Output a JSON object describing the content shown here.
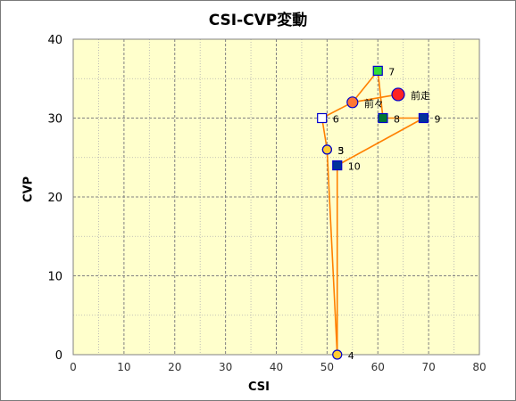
{
  "chart_data": {
    "type": "scatter",
    "title": "CSI-CVP変動",
    "xlabel": "CSI",
    "ylabel": "CVP",
    "xlim": [
      0,
      80
    ],
    "ylim": [
      0,
      40
    ],
    "xticks": [
      0,
      10,
      20,
      30,
      40,
      50,
      60,
      70,
      80
    ],
    "yticks": [
      0,
      10,
      20,
      30,
      40
    ],
    "grid": true,
    "colors": {
      "plot_bg": "#ffffcc",
      "grid": "#808080",
      "line": "#ff8000",
      "square_blue": "#003399",
      "square_green": "#33dd33",
      "square_darkgreen": "#007733",
      "circle_red": "#ff2222",
      "circle_orange": "#ff7733",
      "circle_yellow": "#ffcc33",
      "circle_green": "#88cc44",
      "marker_stroke": "#0000cc"
    },
    "path_order": [
      "前走",
      "前々",
      "6",
      "5",
      "4",
      "10",
      "9",
      "8",
      "7",
      "前々"
    ],
    "points": [
      {
        "label": "前走",
        "x": 64,
        "y": 33,
        "marker": "circle",
        "fill": "#ff2222",
        "size": 7
      },
      {
        "label": "前々",
        "x": 55,
        "y": 32,
        "marker": "circle",
        "fill": "#ff7733",
        "size": 6
      },
      {
        "label": "3",
        "x": 50,
        "y": 26,
        "marker": "circle",
        "fill": "#88cc44",
        "size": 5
      },
      {
        "label": "4",
        "x": 52,
        "y": 0,
        "marker": "circle",
        "fill": "#ffcc33",
        "size": 5
      },
      {
        "label": "5",
        "x": 50,
        "y": 26,
        "marker": "circle",
        "fill": "#ffcc33",
        "size": 5
      },
      {
        "label": "6",
        "x": 49,
        "y": 30,
        "marker": "square",
        "fill": "#ffffff",
        "size": 5
      },
      {
        "label": "7",
        "x": 60,
        "y": 36,
        "marker": "square",
        "fill": "#33dd33",
        "size": 5
      },
      {
        "label": "8",
        "x": 61,
        "y": 30,
        "marker": "square",
        "fill": "#007733",
        "size": 5
      },
      {
        "label": "9",
        "x": 69,
        "y": 30,
        "marker": "square",
        "fill": "#003399",
        "size": 5
      },
      {
        "label": "10",
        "x": 52,
        "y": 24,
        "marker": "square",
        "fill": "#003399",
        "size": 5
      }
    ]
  }
}
